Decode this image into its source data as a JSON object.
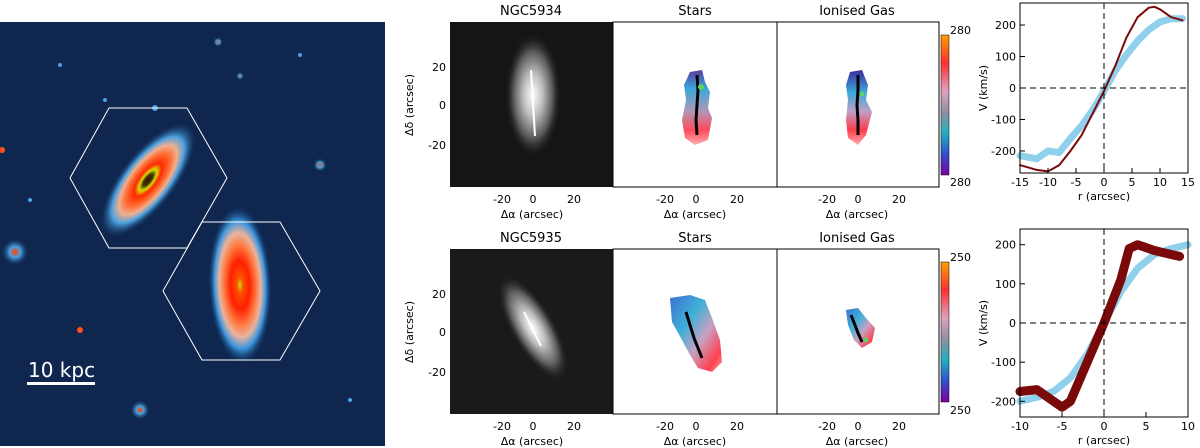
{
  "image_panel": {
    "scale_bar": "10 kpc"
  },
  "rows": [
    {
      "galaxy": "NGC5934",
      "panels": [
        "NGC5934",
        "Stars",
        "Ionised Gas"
      ],
      "colorbar": {
        "top": "280",
        "bottom": "280"
      },
      "xticks": [
        "-20",
        "0",
        "20"
      ],
      "yticks": [
        "20",
        "0",
        "-20"
      ],
      "xlabel": "Δα  (arcsec)",
      "ylabel": "Δδ  (arcsec)"
    },
    {
      "galaxy": "NGC5935",
      "panels": [
        "NGC5935",
        "Stars",
        "Ionised Gas"
      ],
      "colorbar": {
        "top": "250",
        "bottom": "250"
      },
      "xticks": [
        "-20",
        "0",
        "20"
      ],
      "yticks": [
        "20",
        "0",
        "-20"
      ],
      "xlabel": "Δα  (arcsec)",
      "ylabel": "Δδ  (arcsec)"
    }
  ],
  "chart_data": [
    {
      "type": "line",
      "xlabel": "r (arcsec)",
      "ylabel": "V (km/s)",
      "xlim": [
        -15,
        15
      ],
      "ylim": [
        -270,
        270
      ],
      "xticks": [
        "-15",
        "-10",
        "-5",
        "0",
        "5",
        "10",
        "15"
      ],
      "yticks": [
        "200",
        "100",
        "0",
        "-100",
        "-200"
      ],
      "series": [
        {
          "color": "#8fd0ec",
          "style": "band",
          "x": [
            -15,
            -12,
            -10,
            -8,
            -6,
            -4,
            -2,
            0,
            2,
            4,
            6,
            8,
            10,
            12,
            14
          ],
          "y": [
            -215,
            -225,
            -200,
            -205,
            -160,
            -120,
            -70,
            -10,
            55,
            105,
            150,
            185,
            210,
            220,
            220
          ]
        },
        {
          "color": "#7a0a0a",
          "style": "line",
          "x": [
            -15,
            -12,
            -10,
            -8,
            -6,
            -4,
            -2,
            0,
            2,
            4,
            6,
            8,
            9,
            10,
            12,
            14
          ],
          "y": [
            -245,
            -260,
            -265,
            -245,
            -200,
            -150,
            -80,
            -10,
            70,
            160,
            225,
            255,
            258,
            250,
            225,
            215
          ]
        }
      ]
    },
    {
      "type": "line",
      "xlabel": "r (arcsec)",
      "ylabel": "V (km/s)",
      "xlim": [
        -10,
        10
      ],
      "ylim": [
        -240,
        240
      ],
      "xticks": [
        "-10",
        "-5",
        "0",
        "5",
        "10"
      ],
      "yticks": [
        "200",
        "100",
        "0",
        "-100",
        "-200"
      ],
      "series": [
        {
          "color": "#8fd0ec",
          "style": "band",
          "x": [
            -10,
            -8,
            -6,
            -4,
            -2,
            0,
            2,
            4,
            6,
            8,
            10
          ],
          "y": [
            -200,
            -190,
            -175,
            -140,
            -80,
            0,
            80,
            140,
            175,
            190,
            200
          ]
        },
        {
          "color": "#7a0a0a",
          "style": "band",
          "x": [
            -10,
            -8,
            -6,
            -5,
            -4,
            -2,
            0,
            2,
            3,
            4,
            6,
            8,
            9
          ],
          "y": [
            -175,
            -170,
            -200,
            -215,
            -200,
            -100,
            0,
            110,
            190,
            200,
            185,
            175,
            170
          ]
        }
      ]
    }
  ]
}
